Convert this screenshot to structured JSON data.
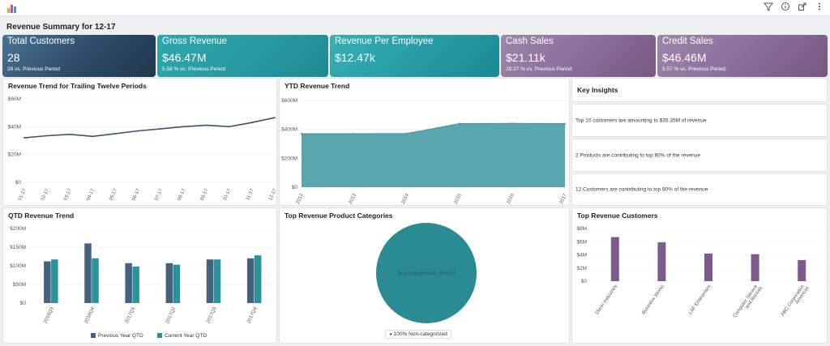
{
  "toolbar": {
    "filter_icon": "filter-icon",
    "info_icon": "info-icon",
    "share_icon": "share-icon",
    "more_icon": "more-vertical-icon"
  },
  "page_title": "Revenue Summary for 12-17",
  "kpis": [
    {
      "title": "Total Customers",
      "value": "28",
      "sub": "28 vs. Previous Period"
    },
    {
      "title": "Gross Revenue",
      "value": "$46.47M",
      "sub": "5.58 % vs. Previous Period"
    },
    {
      "title": "Revenue Per Employee",
      "value": "$12.47k",
      "sub": ""
    },
    {
      "title": "Cash Sales",
      "value": "$21.11k",
      "sub": "29.37 % vs. Previous Period"
    },
    {
      "title": "Credit Sales",
      "value": "$46.46M",
      "sub": "5.57 % vs. Previous Period"
    }
  ],
  "colors": {
    "navy": "#2f4f6f",
    "teal": "#2a9aa2",
    "purple": "#8a6d98",
    "line": "#3a5570",
    "area": "#5aa6ad",
    "bar_prev": "#44627e",
    "bar_curr": "#2b9299",
    "bar_customer": "#7f5b8d",
    "pie": "#2b8b93"
  },
  "trend_panel": {
    "title": "Revenue Trend for Trailing Twelve Periods",
    "chart_data": {
      "type": "line",
      "x": [
        "01-17",
        "02-17",
        "03-17",
        "04-17",
        "05-17",
        "06-17",
        "07-17",
        "08-17",
        "09-17",
        "10-17",
        "11-17",
        "12-17"
      ],
      "values": [
        32,
        33.5,
        34.5,
        33,
        35,
        37,
        38.5,
        40,
        41,
        40,
        43,
        46.5
      ],
      "y_ticks": [
        "$0",
        "$20M",
        "$40M",
        "$60M"
      ],
      "ylim": [
        0,
        60
      ]
    }
  },
  "ytd_panel": {
    "title": "YTD Revenue Trend",
    "chart_data": {
      "type": "area",
      "x": [
        "2012",
        "2013",
        "2014",
        "2015",
        "2016",
        "2017"
      ],
      "values": [
        370,
        370,
        372,
        440,
        442,
        440
      ],
      "y_ticks": [
        "$0",
        "$200M",
        "$400M",
        "$600M"
      ],
      "ylim": [
        0,
        600
      ]
    }
  },
  "insights": {
    "title": "Key Insights",
    "items": [
      "Top 10 customers are amounting to $35.35M of revenue",
      "2 Products are contributing to top 80% of the revenue",
      "12 Customers are contributing to top 80% of the revenue"
    ]
  },
  "qtd_panel": {
    "title": "QTD Revenue Trend",
    "legend": [
      "Previous Year QTD",
      "Current Year QTD"
    ],
    "chart_data": {
      "type": "bar",
      "categories": [
        "2016Q3",
        "2016Q4",
        "2017Q1",
        "2017Q2",
        "2017Q3",
        "2017Q4"
      ],
      "series": [
        {
          "name": "Previous Year QTD",
          "values": [
            112,
            160,
            107,
            107,
            117,
            120
          ]
        },
        {
          "name": "Current Year QTD",
          "values": [
            117,
            120,
            98,
            103,
            117,
            128
          ]
        }
      ],
      "y_ticks": [
        "$0",
        "$50M",
        "$100M",
        "$150M",
        "$200M"
      ],
      "ylim": [
        0,
        200
      ]
    }
  },
  "categories_panel": {
    "title": "Top Revenue Product Categories",
    "slice_label": "Non-categorized, $43.04",
    "legend_label": "100% Non-categorized",
    "chart_data": {
      "type": "pie",
      "labels": [
        "Non-categorized"
      ],
      "values": [
        100
      ]
    }
  },
  "customers_panel": {
    "title": "Top Revenue Customers",
    "chart_data": {
      "type": "bar",
      "categories": [
        "Dixon Industries",
        "Business Works",
        "LAF Enterprises",
        "Computer Service and Rentals",
        "ABC Corporation Americas"
      ],
      "values": [
        6.7,
        5.9,
        4.2,
        4.1,
        3.2
      ],
      "y_ticks": [
        "$0",
        "$2M",
        "$4M",
        "$6M",
        "$8M"
      ],
      "ylim": [
        0,
        8
      ]
    }
  }
}
